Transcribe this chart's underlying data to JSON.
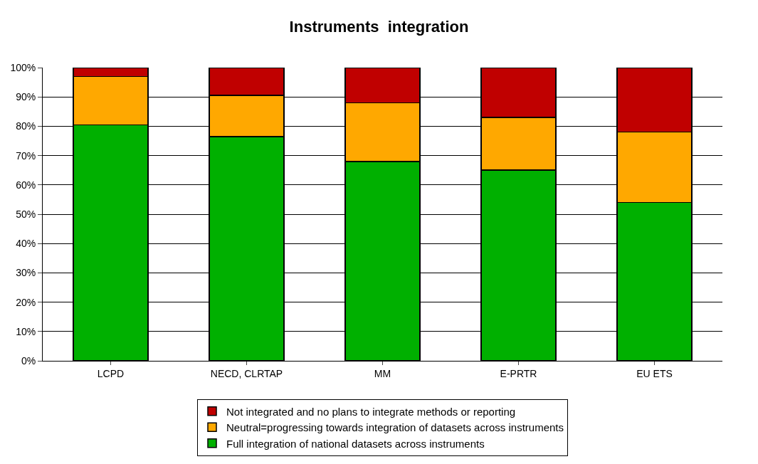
{
  "chart_data": {
    "type": "bar",
    "title": "Instruments  integration",
    "stacked": true,
    "categories": [
      "LCPD",
      "NECD, CLRTAP",
      "MM",
      "E-PRTR",
      "EU ETS"
    ],
    "series": [
      {
        "name": "Full integration of national datasets across instruments",
        "color": "#00b000",
        "values": [
          80.5,
          76.5,
          68,
          65,
          54
        ]
      },
      {
        "name": "Neutral=progressing towards integration of datasets across instruments",
        "color": "#ffa800",
        "values": [
          16.5,
          14,
          20,
          18,
          24
        ]
      },
      {
        "name": "Not integrated and no plans to integrate methods or reporting",
        "color": "#c00000",
        "values": [
          3,
          9.5,
          12,
          17,
          22
        ]
      }
    ],
    "ylim": [
      0,
      100
    ],
    "yticks": [
      {
        "value": 0,
        "label": "0%"
      },
      {
        "value": 10,
        "label": "10%"
      },
      {
        "value": 20,
        "label": "20%"
      },
      {
        "value": 30,
        "label": "30%"
      },
      {
        "value": 40,
        "label": "40%"
      },
      {
        "value": 50,
        "label": "50%"
      },
      {
        "value": 60,
        "label": "60%"
      },
      {
        "value": 70,
        "label": "70%"
      },
      {
        "value": 80,
        "label": "80%"
      },
      {
        "value": 90,
        "label": "90%"
      },
      {
        "value": 100,
        "label": "100%"
      }
    ],
    "grid": "y",
    "legend": "bottom"
  }
}
